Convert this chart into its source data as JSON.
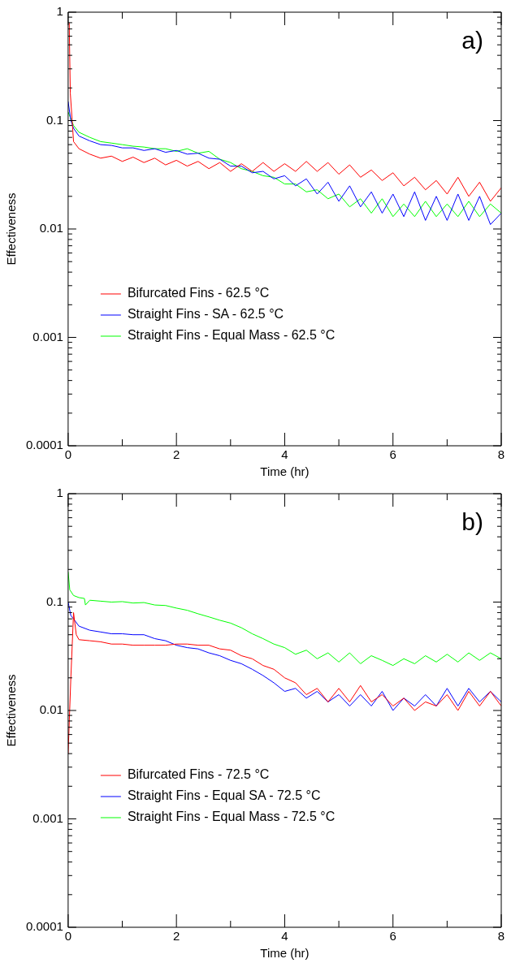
{
  "chart_data": [
    {
      "type": "line",
      "xlabel": "Time (hr)",
      "ylabel": "Effectiveness",
      "annotations": [
        "a)"
      ],
      "log": true,
      "grid": false,
      "legend": "bottom left",
      "marker": "none",
      "line_style": "solid",
      "xlim": [
        0,
        8
      ],
      "xticks": [
        0,
        {
          "value": 1,
          "label": null
        },
        2,
        {
          "value": 3,
          "label": null
        },
        4,
        {
          "value": 5,
          "label": null
        },
        6,
        {
          "value": 7,
          "label": null
        },
        8
      ],
      "ylim": [
        0.0001,
        1
      ],
      "yticks": [
        0.0001,
        {
          "value": 0.0002,
          "label": null
        },
        {
          "value": 0.0003,
          "label": null
        },
        {
          "value": 0.0004,
          "label": null
        },
        {
          "value": 0.0005,
          "label": null
        },
        {
          "value": 0.0006,
          "label": null
        },
        {
          "value": 0.0007,
          "label": null
        },
        {
          "value": 0.0008,
          "label": null
        },
        {
          "value": 0.0009,
          "label": null
        },
        0.001,
        {
          "value": 0.002,
          "label": null
        },
        {
          "value": 0.003,
          "label": null
        },
        {
          "value": 0.004,
          "label": null
        },
        {
          "value": 0.005,
          "label": null
        },
        {
          "value": 0.006,
          "label": null
        },
        {
          "value": 0.007,
          "label": null
        },
        {
          "value": 0.008,
          "label": null
        },
        {
          "value": 0.009,
          "label": null
        },
        0.01,
        {
          "value": 0.02,
          "label": null
        },
        {
          "value": 0.03,
          "label": null
        },
        {
          "value": 0.04,
          "label": null
        },
        {
          "value": 0.05,
          "label": null
        },
        {
          "value": 0.06,
          "label": null
        },
        {
          "value": 0.07,
          "label": null
        },
        {
          "value": 0.08,
          "label": null
        },
        {
          "value": 0.09,
          "label": null
        },
        0.1,
        {
          "value": 0.2,
          "label": null
        },
        {
          "value": 0.3,
          "label": null
        },
        {
          "value": 0.4,
          "label": null
        },
        {
          "value": 0.5,
          "label": null
        },
        {
          "value": 0.6,
          "label": null
        },
        {
          "value": 0.7,
          "label": null
        },
        {
          "value": 0.8,
          "label": null
        },
        {
          "value": 0.9,
          "label": null
        },
        1
      ],
      "series": [
        {
          "name": "Bifurcated Fins - 62.5 °C",
          "color": "#ff0000",
          "x": [
            0.02,
            0.04,
            0.1,
            0.2,
            0.4,
            0.6,
            0.8,
            1.0,
            1.2,
            1.4,
            1.6,
            1.8,
            2.0,
            2.2,
            2.4,
            2.6,
            2.8,
            3.0,
            3.2,
            3.4,
            3.6,
            3.8,
            4.0,
            4.2,
            4.4,
            4.6,
            4.8,
            5.0,
            5.2,
            5.4,
            5.6,
            5.8,
            6.0,
            6.2,
            6.4,
            6.6,
            6.8,
            7.0,
            7.2,
            7.4,
            7.6,
            7.8,
            8.0
          ],
          "values": [
            0.8,
            0.18,
            0.064,
            0.055,
            0.049,
            0.045,
            0.047,
            0.042,
            0.046,
            0.041,
            0.045,
            0.039,
            0.043,
            0.038,
            0.042,
            0.036,
            0.041,
            0.034,
            0.04,
            0.034,
            0.041,
            0.034,
            0.04,
            0.034,
            0.042,
            0.034,
            0.041,
            0.032,
            0.039,
            0.03,
            0.035,
            0.028,
            0.033,
            0.025,
            0.03,
            0.023,
            0.028,
            0.021,
            0.03,
            0.02,
            0.027,
            0.018,
            0.024
          ]
        },
        {
          "name": "Straight Fins - SA - 62.5 °C",
          "color": "#0000ff",
          "x": [
            0,
            0.05,
            0.1,
            0.2,
            0.4,
            0.6,
            0.8,
            1.0,
            1.2,
            1.4,
            1.6,
            1.8,
            2.0,
            2.2,
            2.4,
            2.6,
            2.8,
            3.0,
            3.2,
            3.4,
            3.6,
            3.8,
            4.0,
            4.2,
            4.4,
            4.6,
            4.8,
            5.0,
            5.2,
            5.4,
            5.6,
            5.8,
            6.0,
            6.2,
            6.4,
            6.6,
            6.8,
            7.0,
            7.2,
            7.4,
            7.6,
            7.8,
            8.0
          ],
          "values": [
            0.15,
            0.1,
            0.085,
            0.072,
            0.065,
            0.06,
            0.059,
            0.056,
            0.056,
            0.053,
            0.055,
            0.051,
            0.053,
            0.049,
            0.05,
            0.045,
            0.044,
            0.038,
            0.038,
            0.033,
            0.034,
            0.029,
            0.031,
            0.025,
            0.029,
            0.021,
            0.027,
            0.018,
            0.025,
            0.016,
            0.022,
            0.014,
            0.021,
            0.013,
            0.022,
            0.012,
            0.02,
            0.012,
            0.021,
            0.012,
            0.02,
            0.011,
            0.014
          ]
        },
        {
          "name": "Straight Fins - Equal Mass - 62.5 °C",
          "color": "#00ff00",
          "x": [
            0,
            0.1,
            0.2,
            0.4,
            0.6,
            0.8,
            1.0,
            1.2,
            1.4,
            1.6,
            1.8,
            2.0,
            2.2,
            2.4,
            2.6,
            2.8,
            3.0,
            3.2,
            3.4,
            3.6,
            3.8,
            4.0,
            4.2,
            4.4,
            4.6,
            4.8,
            5.0,
            5.2,
            5.4,
            5.6,
            5.8,
            6.0,
            6.2,
            6.4,
            6.6,
            6.8,
            7.0,
            7.2,
            7.4,
            7.6,
            7.8,
            8.0
          ],
          "values": [
            0.12,
            0.09,
            0.078,
            0.07,
            0.064,
            0.062,
            0.06,
            0.058,
            0.057,
            0.055,
            0.055,
            0.052,
            0.055,
            0.05,
            0.052,
            0.044,
            0.041,
            0.036,
            0.034,
            0.031,
            0.03,
            0.026,
            0.026,
            0.022,
            0.023,
            0.019,
            0.021,
            0.016,
            0.019,
            0.014,
            0.019,
            0.013,
            0.017,
            0.013,
            0.018,
            0.013,
            0.017,
            0.013,
            0.018,
            0.013,
            0.017,
            0.014
          ]
        }
      ]
    },
    {
      "type": "line",
      "xlabel": "Time (hr)",
      "ylabel": "Effectiveness",
      "annotations": [
        "b)"
      ],
      "log": true,
      "grid": false,
      "legend": "bottom left",
      "marker": "none",
      "line_style": "solid",
      "xlim": [
        0,
        8
      ],
      "xticks": [
        0,
        {
          "value": 1,
          "label": null
        },
        2,
        {
          "value": 3,
          "label": null
        },
        4,
        {
          "value": 5,
          "label": null
        },
        6,
        {
          "value": 7,
          "label": null
        },
        8
      ],
      "ylim": [
        0.0001,
        1
      ],
      "yticks": [
        0.0001,
        {
          "value": 0.0002,
          "label": null
        },
        {
          "value": 0.0003,
          "label": null
        },
        {
          "value": 0.0004,
          "label": null
        },
        {
          "value": 0.0005,
          "label": null
        },
        {
          "value": 0.0006,
          "label": null
        },
        {
          "value": 0.0007,
          "label": null
        },
        {
          "value": 0.0008,
          "label": null
        },
        {
          "value": 0.0009,
          "label": null
        },
        0.001,
        {
          "value": 0.002,
          "label": null
        },
        {
          "value": 0.003,
          "label": null
        },
        {
          "value": 0.004,
          "label": null
        },
        {
          "value": 0.005,
          "label": null
        },
        {
          "value": 0.006,
          "label": null
        },
        {
          "value": 0.007,
          "label": null
        },
        {
          "value": 0.008,
          "label": null
        },
        {
          "value": 0.009,
          "label": null
        },
        0.01,
        {
          "value": 0.02,
          "label": null
        },
        {
          "value": 0.03,
          "label": null
        },
        {
          "value": 0.04,
          "label": null
        },
        {
          "value": 0.05,
          "label": null
        },
        {
          "value": 0.06,
          "label": null
        },
        {
          "value": 0.07,
          "label": null
        },
        {
          "value": 0.08,
          "label": null
        },
        {
          "value": 0.09,
          "label": null
        },
        0.1,
        {
          "value": 0.2,
          "label": null
        },
        {
          "value": 0.3,
          "label": null
        },
        {
          "value": 0.4,
          "label": null
        },
        {
          "value": 0.5,
          "label": null
        },
        {
          "value": 0.6,
          "label": null
        },
        {
          "value": 0.7,
          "label": null
        },
        {
          "value": 0.8,
          "label": null
        },
        {
          "value": 0.9,
          "label": null
        },
        1
      ],
      "series": [
        {
          "name": "Bifurcated Fins - 72.5 °C",
          "color": "#ff0000",
          "x": [
            0,
            0.05,
            0.1,
            0.15,
            0.2,
            0.4,
            0.6,
            0.8,
            1.0,
            1.2,
            1.4,
            1.6,
            1.8,
            2.0,
            2.2,
            2.4,
            2.6,
            2.8,
            3.0,
            3.2,
            3.4,
            3.6,
            3.8,
            4.0,
            4.2,
            4.4,
            4.6,
            4.8,
            5.0,
            5.2,
            5.4,
            5.6,
            5.8,
            6.0,
            6.2,
            6.4,
            6.6,
            6.8,
            7.0,
            7.2,
            7.4,
            7.6,
            7.8,
            8.0
          ],
          "values": [
            0.004,
            0.02,
            0.08,
            0.05,
            0.045,
            0.044,
            0.043,
            0.041,
            0.041,
            0.04,
            0.04,
            0.04,
            0.04,
            0.041,
            0.041,
            0.04,
            0.04,
            0.037,
            0.036,
            0.032,
            0.03,
            0.026,
            0.024,
            0.02,
            0.018,
            0.014,
            0.016,
            0.012,
            0.016,
            0.012,
            0.017,
            0.012,
            0.014,
            0.011,
            0.013,
            0.01,
            0.012,
            0.011,
            0.014,
            0.01,
            0.015,
            0.011,
            0.015,
            0.011
          ]
        },
        {
          "name": "Straight Fins - Equal SA - 72.5 °C",
          "color": "#0000ff",
          "x": [
            0,
            0.05,
            0.1,
            0.2,
            0.4,
            0.6,
            0.8,
            1.0,
            1.2,
            1.4,
            1.6,
            1.8,
            2.0,
            2.2,
            2.4,
            2.6,
            2.8,
            3.0,
            3.2,
            3.4,
            3.6,
            3.8,
            4.0,
            4.2,
            4.4,
            4.6,
            4.8,
            5.0,
            5.2,
            5.4,
            5.6,
            5.8,
            6.0,
            6.2,
            6.4,
            6.6,
            6.8,
            7.0,
            7.2,
            7.4,
            7.6,
            7.8,
            8.0
          ],
          "values": [
            0.1,
            0.075,
            0.07,
            0.06,
            0.055,
            0.053,
            0.051,
            0.051,
            0.05,
            0.05,
            0.046,
            0.044,
            0.04,
            0.038,
            0.037,
            0.034,
            0.032,
            0.029,
            0.027,
            0.024,
            0.021,
            0.018,
            0.015,
            0.016,
            0.013,
            0.015,
            0.012,
            0.014,
            0.011,
            0.014,
            0.011,
            0.015,
            0.01,
            0.013,
            0.011,
            0.014,
            0.011,
            0.016,
            0.011,
            0.016,
            0.012,
            0.015,
            0.012
          ]
        },
        {
          "name": "Straight Fins - Equal Mass - 72.5 °C",
          "color": "#00ff00",
          "x": [
            0,
            0.03,
            0.1,
            0.2,
            0.3,
            0.32,
            0.4,
            0.6,
            0.8,
            1.0,
            1.2,
            1.4,
            1.6,
            1.8,
            2.0,
            2.2,
            2.4,
            2.6,
            2.8,
            3.0,
            3.2,
            3.4,
            3.6,
            3.8,
            4.0,
            4.2,
            4.4,
            4.6,
            4.8,
            5.0,
            5.2,
            5.4,
            5.6,
            5.8,
            6.0,
            6.2,
            6.4,
            6.6,
            6.8,
            7.0,
            7.2,
            7.4,
            7.6,
            7.8,
            8.0
          ],
          "values": [
            0.19,
            0.13,
            0.115,
            0.11,
            0.108,
            0.094,
            0.104,
            0.102,
            0.1,
            0.101,
            0.098,
            0.099,
            0.094,
            0.093,
            0.088,
            0.084,
            0.078,
            0.073,
            0.068,
            0.064,
            0.058,
            0.051,
            0.046,
            0.041,
            0.038,
            0.033,
            0.036,
            0.03,
            0.034,
            0.028,
            0.034,
            0.027,
            0.032,
            0.029,
            0.026,
            0.03,
            0.027,
            0.032,
            0.028,
            0.033,
            0.028,
            0.034,
            0.029,
            0.034,
            0.03
          ]
        }
      ]
    }
  ]
}
